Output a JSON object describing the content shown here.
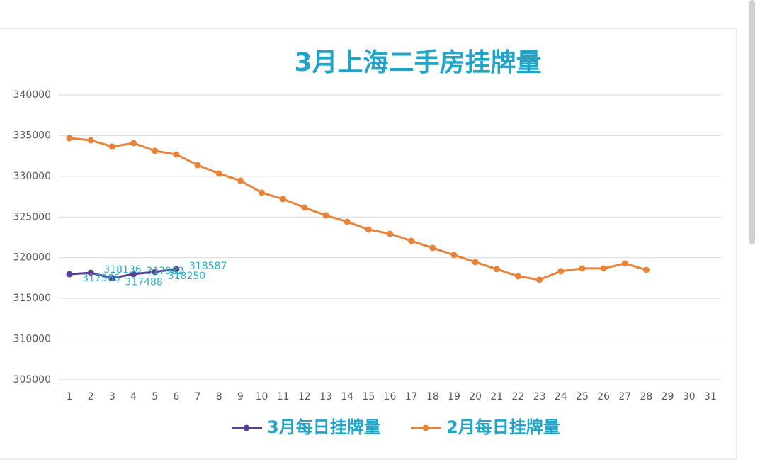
{
  "chart_data": {
    "type": "line",
    "title": "3月上海二手房挂牌量",
    "categories": [
      "1",
      "2",
      "3",
      "4",
      "5",
      "6",
      "7",
      "8",
      "9",
      "10",
      "11",
      "12",
      "13",
      "14",
      "15",
      "16",
      "17",
      "18",
      "19",
      "20",
      "21",
      "22",
      "23",
      "24",
      "25",
      "26",
      "27",
      "28",
      "29",
      "30",
      "31"
    ],
    "series": [
      {
        "name": "3月每日挂牌量",
        "color": "#5b3f94",
        "show_labels": true,
        "values": [
          317966,
          318136,
          317488,
          317982,
          318250,
          318587,
          null,
          null,
          null,
          null,
          null,
          null,
          null,
          null,
          null,
          null,
          null,
          null,
          null,
          null,
          null,
          null,
          null,
          null,
          null,
          null,
          null,
          null,
          null,
          null,
          null
        ]
      },
      {
        "name": "2月每日挂牌量",
        "color": "#e8843a",
        "values": [
          334700,
          334430,
          333650,
          334080,
          333130,
          332690,
          331380,
          330340,
          329470,
          327990,
          327210,
          326160,
          325200,
          324420,
          323460,
          322940,
          322070,
          321200,
          320330,
          319460,
          318590,
          317720,
          317290,
          318330,
          318680,
          318680,
          319290,
          318500,
          null,
          null,
          null
        ]
      }
    ],
    "ylim": [
      305000,
      340000
    ],
    "yticks": [
      305000,
      310000,
      315000,
      320000,
      325000,
      330000,
      335000,
      340000
    ],
    "grid": true,
    "legend": "bottom"
  }
}
